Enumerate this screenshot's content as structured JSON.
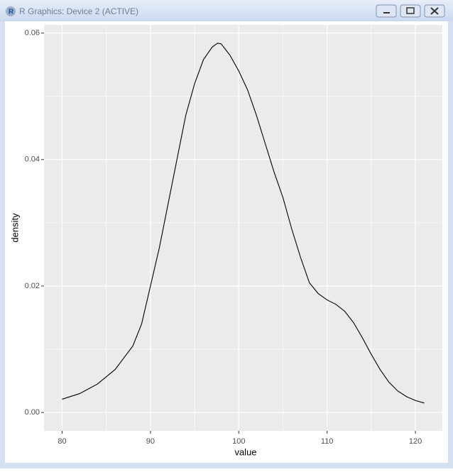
{
  "window": {
    "title": "R Graphics: Device 2 (ACTIVE)"
  },
  "chart_data": {
    "type": "line",
    "x_label": "value",
    "y_label": "density",
    "x": [
      80,
      82,
      84,
      86,
      88,
      89,
      90,
      91,
      92,
      93,
      94,
      95,
      96,
      97,
      97.6,
      98,
      99,
      100,
      101,
      102,
      103,
      104,
      105,
      106,
      107,
      108,
      109,
      110,
      111,
      112,
      113,
      114,
      115,
      116,
      117,
      118,
      119,
      120,
      121
    ],
    "series": [
      {
        "name": "density",
        "color": "#000000",
        "values": [
          0.0021,
          0.003,
          0.0045,
          0.0068,
          0.0105,
          0.014,
          0.02,
          0.026,
          0.033,
          0.04,
          0.047,
          0.052,
          0.0558,
          0.0578,
          0.0584,
          0.0583,
          0.0565,
          0.054,
          0.051,
          0.047,
          0.0425,
          0.038,
          0.034,
          0.029,
          0.0245,
          0.0205,
          0.0188,
          0.0178,
          0.0171,
          0.016,
          0.0142,
          0.0118,
          0.0092,
          0.0068,
          0.0048,
          0.0034,
          0.0025,
          0.0019,
          0.0015
        ]
      }
    ],
    "xlim": [
      77.95,
      123.05
    ],
    "ylim": [
      -0.0029,
      0.0613
    ],
    "xticks": [
      80,
      90,
      100,
      110,
      120
    ],
    "yticks": [
      {
        "value": 0,
        "label": "0.00"
      },
      {
        "value": 0.02,
        "label": "0.02"
      },
      {
        "value": 0.04,
        "label": "0.04"
      },
      {
        "value": 0.06,
        "label": "0.06"
      }
    ],
    "xminor": [
      85,
      95,
      105,
      115
    ],
    "yminor": [
      0.01,
      0.03,
      0.05
    ],
    "grid": true,
    "panel_color": "#ebebeb"
  }
}
